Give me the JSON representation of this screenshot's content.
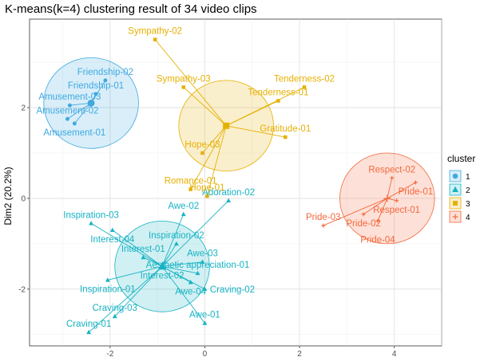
{
  "chart_data": {
    "type": "scatter",
    "title": "K-means(k=4) clustering result of 34 video clips",
    "xlabel": "",
    "ylabel": "Dim2 (20.2%)",
    "xlim": [
      -3.7,
      5.0
    ],
    "ylim": [
      -3.25,
      3.95
    ],
    "x_ticks": [
      -2,
      0,
      2,
      4
    ],
    "y_ticks": [
      -2,
      0,
      2
    ],
    "x_tick_labels": [
      "-2",
      "0",
      "2",
      "4"
    ],
    "y_tick_labels": [
      "-2",
      "0",
      "2"
    ],
    "grid": true,
    "legend_position": "right",
    "legend_title": "cluster",
    "clusters": [
      {
        "name": "1",
        "color": "#3fa9e0",
        "shape": "circle",
        "center": {
          "x": -2.4,
          "y": 2.1
        },
        "radius": 1.0,
        "points": [
          {
            "label": "Friendship-02",
            "x": -2.1,
            "y": 2.6
          },
          {
            "label": "Friendship-01",
            "x": -2.3,
            "y": 2.3
          },
          {
            "label": "Amusement-03",
            "x": -2.85,
            "y": 2.05
          },
          {
            "label": "Amusement-02",
            "x": -2.9,
            "y": 1.75
          },
          {
            "label": "Amusement-01",
            "x": -2.75,
            "y": 1.65
          }
        ]
      },
      {
        "name": "2",
        "color": "#17b3c4",
        "shape": "triangle",
        "center": {
          "x": -0.9,
          "y": -1.5
        },
        "radius": 1.0,
        "points": [
          {
            "label": "Adoration-02",
            "x": 0.5,
            "y": -0.05
          },
          {
            "label": "Awe-02",
            "x": -0.45,
            "y": -0.35
          },
          {
            "label": "Inspiration-03",
            "x": -2.4,
            "y": -0.55
          },
          {
            "label": "Interest-04",
            "x": -1.95,
            "y": -0.7
          },
          {
            "label": "Inspiration-02",
            "x": -0.6,
            "y": -1.0
          },
          {
            "label": "Interest-01",
            "x": -1.3,
            "y": -1.3
          },
          {
            "label": "Awe-03",
            "x": -0.05,
            "y": -1.4
          },
          {
            "label": "Interest-02",
            "x": -0.9,
            "y": -1.5
          },
          {
            "label": "Aesthetic appreciation-01",
            "x": -0.15,
            "y": -1.65
          },
          {
            "label": "Awe-04",
            "x": -0.3,
            "y": -1.85
          },
          {
            "label": "Inspiration-01",
            "x": -2.05,
            "y": -1.8
          },
          {
            "label": "Craving-02",
            "x": 0.0,
            "y": -2.0
          },
          {
            "label": "Awe-01",
            "x": 0.0,
            "y": -2.75
          },
          {
            "label": "Craving-03",
            "x": -1.9,
            "y": -2.6
          },
          {
            "label": "Craving-01",
            "x": -2.45,
            "y": -2.95
          }
        ]
      },
      {
        "name": "3",
        "color": "#e6b000",
        "shape": "square",
        "center": {
          "x": 0.45,
          "y": 1.6
        },
        "radius": 1.0,
        "points": [
          {
            "label": "Sympathy-02",
            "x": -1.05,
            "y": 3.5
          },
          {
            "label": "Sympathy-03",
            "x": -0.45,
            "y": 2.45
          },
          {
            "label": "Tenderness-02",
            "x": 2.1,
            "y": 2.45
          },
          {
            "label": "Tenderness-01",
            "x": 1.55,
            "y": 2.15
          },
          {
            "label": "Gratitude-01",
            "x": 1.7,
            "y": 1.35
          },
          {
            "label": "Hope-03",
            "x": -0.05,
            "y": 1.0
          },
          {
            "label": "Romance-01",
            "x": -0.3,
            "y": 0.2
          },
          {
            "label": "Hope-01",
            "x": 0.05,
            "y": 0.05
          }
        ]
      },
      {
        "name": "4",
        "color": "#f4683c",
        "shape": "cross",
        "center": {
          "x": 3.85,
          "y": 0.0
        },
        "radius": 1.0,
        "points": [
          {
            "label": "Respect-02",
            "x": 3.95,
            "y": 0.45
          },
          {
            "label": "Pride-01",
            "x": 4.45,
            "y": 0.35
          },
          {
            "label": "Respect-01",
            "x": 4.05,
            "y": -0.05
          },
          {
            "label": "Pride-02",
            "x": 3.35,
            "y": -0.35
          },
          {
            "label": "Pride-03",
            "x": 2.5,
            "y": -0.6
          },
          {
            "label": "Pride-04",
            "x": 3.65,
            "y": -0.5
          }
        ]
      }
    ]
  }
}
